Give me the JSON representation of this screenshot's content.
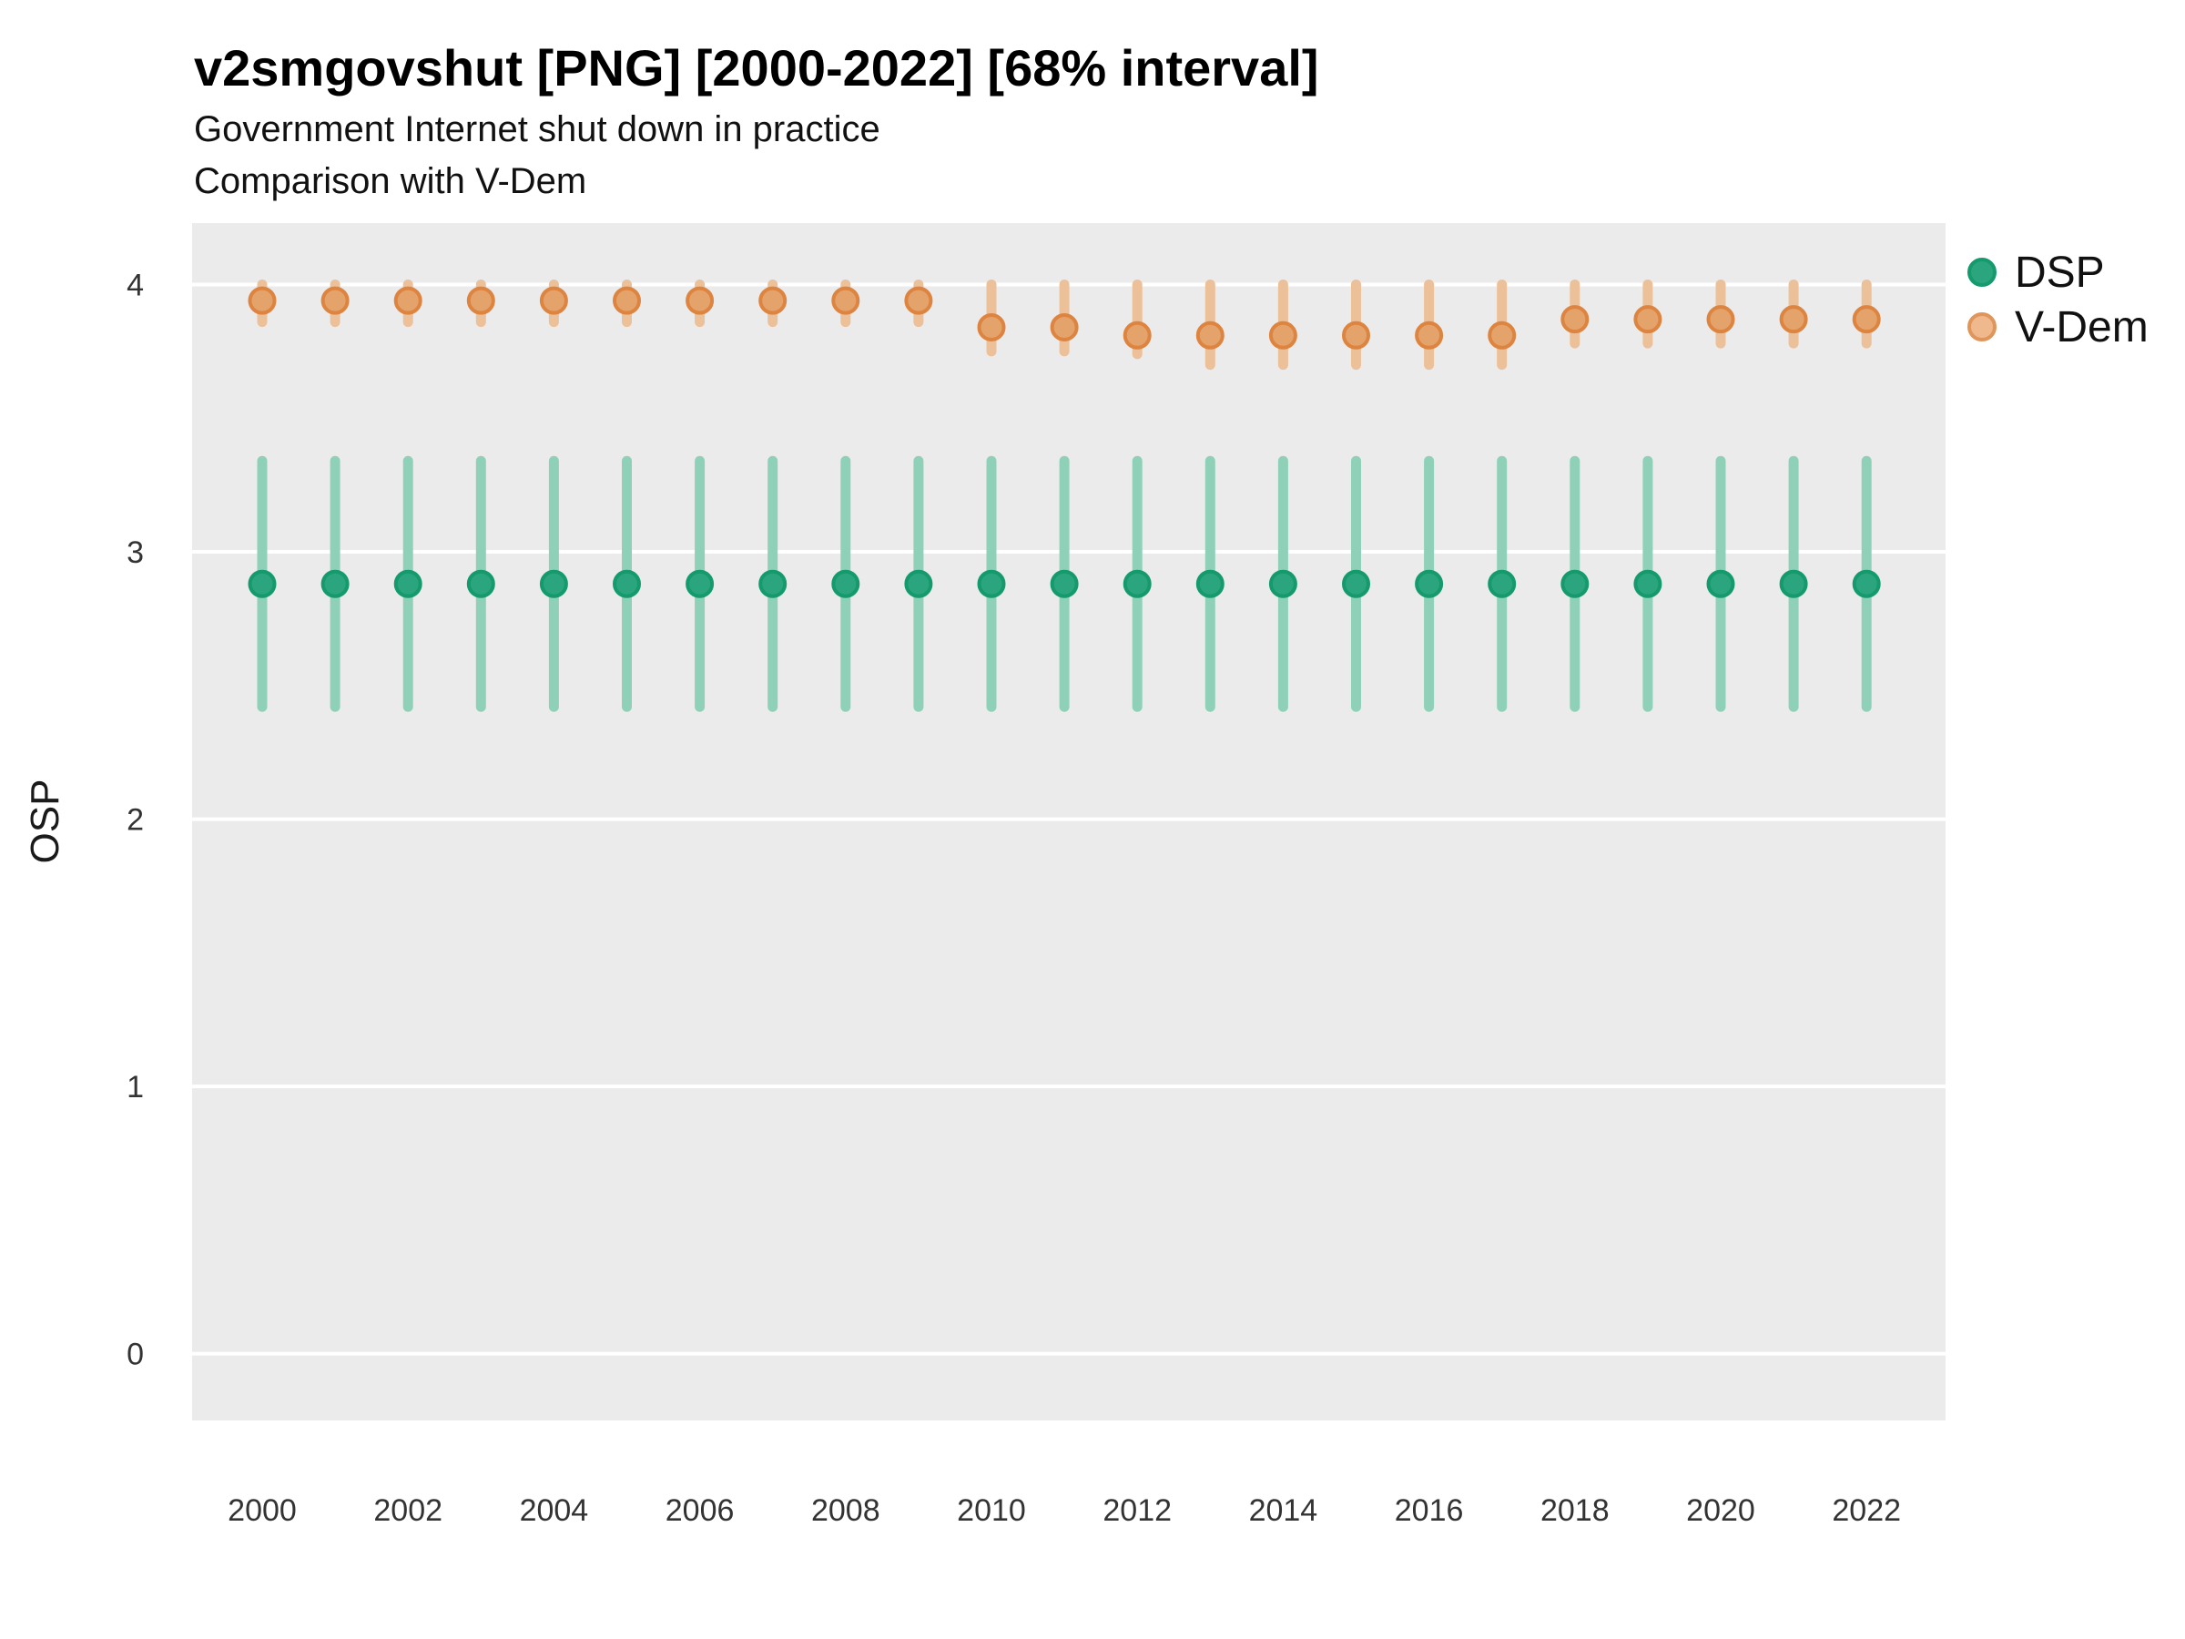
{
  "header": {
    "title": "v2smgovshut [PNG] [2000-2022] [68% interval]",
    "subtitle_line1": "Government Internet shut down in practice",
    "subtitle_line2": "Comparison with V-Dem"
  },
  "axes": {
    "y_label": "OSP",
    "y_tick_labels": [
      "0",
      "1",
      "2",
      "3",
      "4"
    ],
    "x_tick_labels": [
      "2000",
      "2002",
      "2004",
      "2006",
      "2008",
      "2010",
      "2012",
      "2014",
      "2016",
      "2018",
      "2020",
      "2022"
    ]
  },
  "legend": {
    "items": [
      {
        "label": "DSP",
        "fill": "#2aa57d",
        "stroke": "#149a6c"
      },
      {
        "label": "V-Dem",
        "fill": "#f0b88d",
        "stroke": "#e0955b"
      }
    ],
    "position": "top-right"
  },
  "panel": {
    "background": "#ebebeb",
    "gridline_color": "#ffffff",
    "tick_text_color": "#333333"
  },
  "chart_data": {
    "type": "pointrange-scatter",
    "title": "v2smgovshut [PNG] [2000-2022] [68% interval]",
    "subtitle": "Government Internet shut down in practice — Comparison with V-Dem",
    "interval": "68%",
    "xlabel": "",
    "ylabel": "OSP",
    "x": [
      2000,
      2001,
      2002,
      2003,
      2004,
      2005,
      2006,
      2007,
      2008,
      2009,
      2010,
      2011,
      2012,
      2013,
      2014,
      2015,
      2016,
      2017,
      2018,
      2019,
      2020,
      2021,
      2022
    ],
    "y_ticks": [
      0,
      1,
      2,
      3,
      4
    ],
    "ylim": [
      -0.25,
      4.23
    ],
    "grid": "horizontal-major-only",
    "legend_position": "top-right",
    "series": [
      {
        "name": "DSP",
        "est": [
          2.88,
          2.88,
          2.88,
          2.88,
          2.88,
          2.88,
          2.88,
          2.88,
          2.88,
          2.88,
          2.88,
          2.88,
          2.88,
          2.88,
          2.88,
          2.88,
          2.88,
          2.88,
          2.88,
          2.88,
          2.88,
          2.88,
          2.88
        ],
        "lo": [
          2.42,
          2.42,
          2.42,
          2.42,
          2.42,
          2.42,
          2.42,
          2.42,
          2.42,
          2.42,
          2.42,
          2.42,
          2.42,
          2.42,
          2.42,
          2.42,
          2.42,
          2.42,
          2.42,
          2.42,
          2.42,
          2.42,
          2.42
        ],
        "hi": [
          3.34,
          3.34,
          3.34,
          3.34,
          3.34,
          3.34,
          3.34,
          3.34,
          3.34,
          3.34,
          3.34,
          3.34,
          3.34,
          3.34,
          3.34,
          3.34,
          3.34,
          3.34,
          3.34,
          3.34,
          3.34,
          3.34,
          3.34
        ],
        "colors": {
          "fill": "#2aa57d",
          "stroke": "#149a6c",
          "bar": "#8fd1b8"
        }
      },
      {
        "name": "V-Dem",
        "est": [
          3.94,
          3.94,
          3.94,
          3.94,
          3.94,
          3.94,
          3.94,
          3.94,
          3.94,
          3.94,
          3.84,
          3.84,
          3.81,
          3.81,
          3.81,
          3.81,
          3.81,
          3.81,
          3.87,
          3.87,
          3.87,
          3.87,
          3.87
        ],
        "lo": [
          3.86,
          3.86,
          3.86,
          3.86,
          3.86,
          3.86,
          3.86,
          3.86,
          3.86,
          3.86,
          3.75,
          3.75,
          3.74,
          3.7,
          3.7,
          3.7,
          3.7,
          3.7,
          3.78,
          3.78,
          3.78,
          3.78,
          3.78
        ],
        "hi": [
          4.0,
          4.0,
          4.0,
          4.0,
          4.0,
          4.0,
          4.0,
          4.0,
          4.0,
          4.0,
          4.0,
          4.0,
          4.0,
          4.0,
          4.0,
          4.0,
          4.0,
          4.0,
          4.0,
          4.0,
          4.0,
          4.0,
          4.0
        ],
        "colors": {
          "fill": "#e5a36c",
          "stroke": "#dd8440",
          "bar": "#ecc098"
        }
      }
    ]
  }
}
